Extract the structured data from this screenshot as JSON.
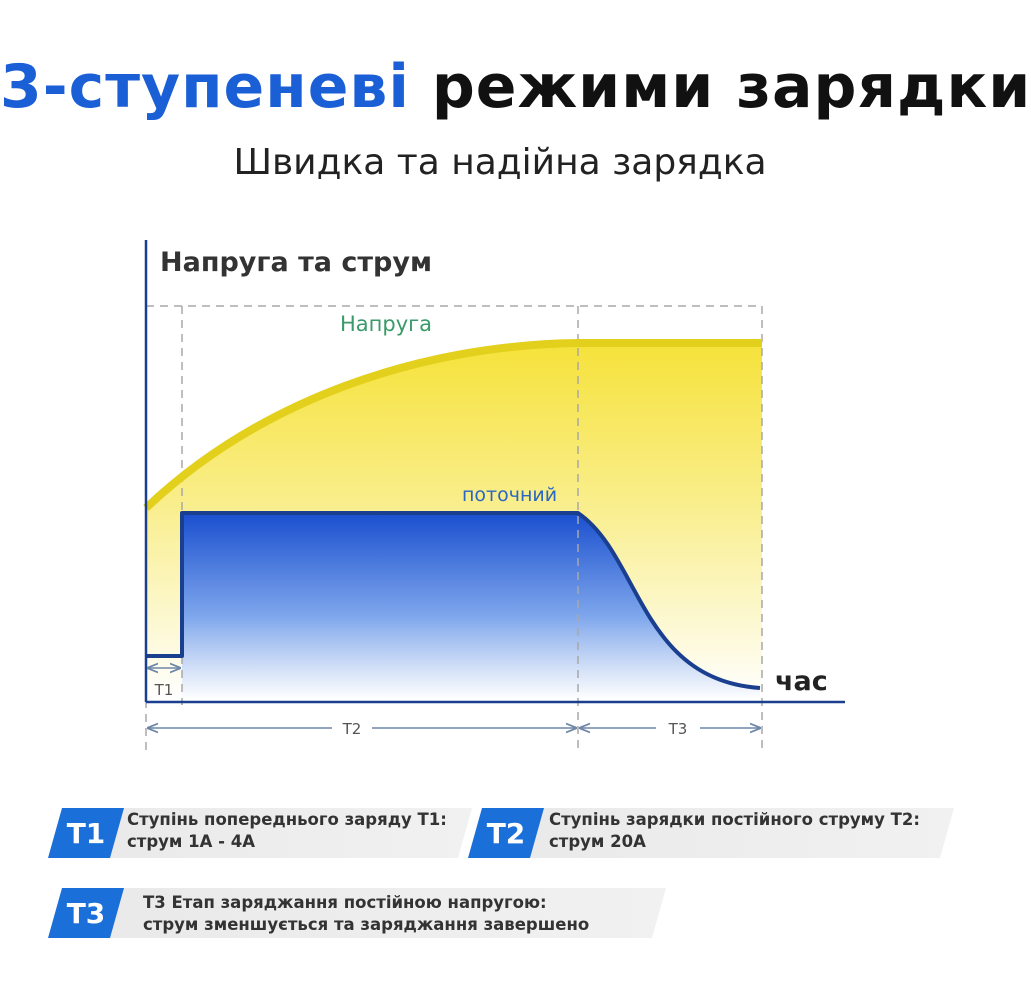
{
  "title": {
    "part1": "3-ступеневі",
    "part2": "режими зарядки"
  },
  "subtitle": "Швидка та надійна зарядка",
  "chart": {
    "y_axis_label": "Напруга та струм",
    "x_axis_label": "час",
    "voltage_label": "Напруга",
    "current_label": "поточний",
    "stages": [
      "T1",
      "T2",
      "T3"
    ]
  },
  "legend": [
    {
      "badge": "T1",
      "line1": "Ступінь попереднього заряду T1:",
      "line2": "струм 1A - 4A"
    },
    {
      "badge": "T2",
      "line1": "Ступінь зарядки постійного струму T2:",
      "line2": "струм 20A"
    },
    {
      "badge": "T3",
      "line1": "T3 Етап заряджання постійною напругою:",
      "line2": "струм зменшується та заряджання завершено"
    }
  ],
  "colors": {
    "title_blue": "#1a5fd6",
    "voltage_yellow": "#e2d01c",
    "current_blue": "#1a3f8f",
    "voltage_label_green": "#3a9a6a",
    "current_label_blue": "#2a66c4",
    "badge_blue": "#1a6fd8"
  }
}
